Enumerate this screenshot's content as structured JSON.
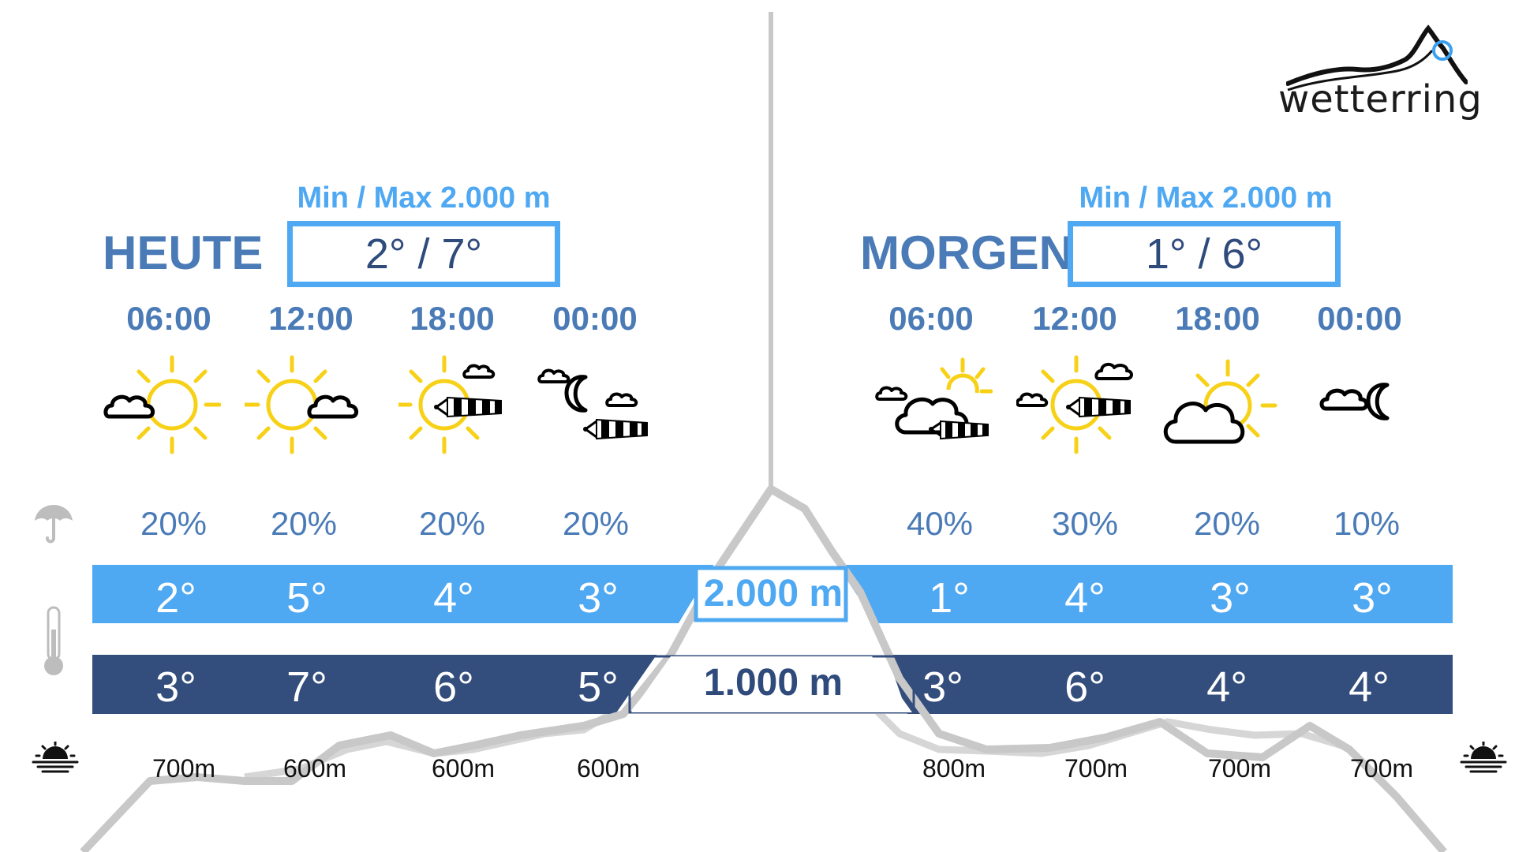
{
  "brand": {
    "name": "wetterring"
  },
  "days": [
    {
      "title": "HEUTE",
      "minmax_label": "Min / Max 2.000 m",
      "minmax": "2° / 7°",
      "slots": [
        {
          "time": "06:00",
          "icon": "sun-cloud-left-icon",
          "precip": "20%",
          "temp_2000": "2°",
          "temp_1000": "3°",
          "snow_line": "700m"
        },
        {
          "time": "12:00",
          "icon": "sun-cloud-right-icon",
          "precip": "20%",
          "temp_2000": "5°",
          "temp_1000": "7°",
          "snow_line": "600m"
        },
        {
          "time": "18:00",
          "icon": "sun-wind-cloud-icon",
          "precip": "20%",
          "temp_2000": "4°",
          "temp_1000": "6°",
          "snow_line": "600m"
        },
        {
          "time": "00:00",
          "icon": "moon-clouds-wind-icon",
          "precip": "20%",
          "temp_2000": "3°",
          "temp_1000": "5°",
          "snow_line": "600m"
        }
      ]
    },
    {
      "title": "MORGEN",
      "minmax_label": "Min / Max 2.000 m",
      "minmax": "1° / 6°",
      "slots": [
        {
          "time": "06:00",
          "icon": "cloud-sun-wind-icon",
          "precip": "40%",
          "temp_2000": "1°",
          "temp_1000": "3°",
          "snow_line": "800m"
        },
        {
          "time": "12:00",
          "icon": "sun-wind-clouds-icon",
          "precip": "30%",
          "temp_2000": "4°",
          "temp_1000": "6°",
          "snow_line": "700m"
        },
        {
          "time": "18:00",
          "icon": "big-cloud-sun-icon",
          "precip": "20%",
          "temp_2000": "3°",
          "temp_1000": "4°",
          "snow_line": "700m"
        },
        {
          "time": "00:00",
          "icon": "cloud-moon-icon",
          "precip": "10%",
          "temp_2000": "3°",
          "temp_1000": "4°",
          "snow_line": "700m"
        }
      ]
    }
  ],
  "altitudes": {
    "high": "2.000 m",
    "low": "1.000 m"
  },
  "side_icons": [
    "umbrella-icon",
    "thermometer-icon",
    "sunrise-icon",
    "sunset-icon"
  ],
  "colors": {
    "accent_light": "#4ea8f2",
    "accent_dark": "#334d7c",
    "title_blue": "#4a7bb7",
    "sun_yellow": "#f7d117"
  }
}
